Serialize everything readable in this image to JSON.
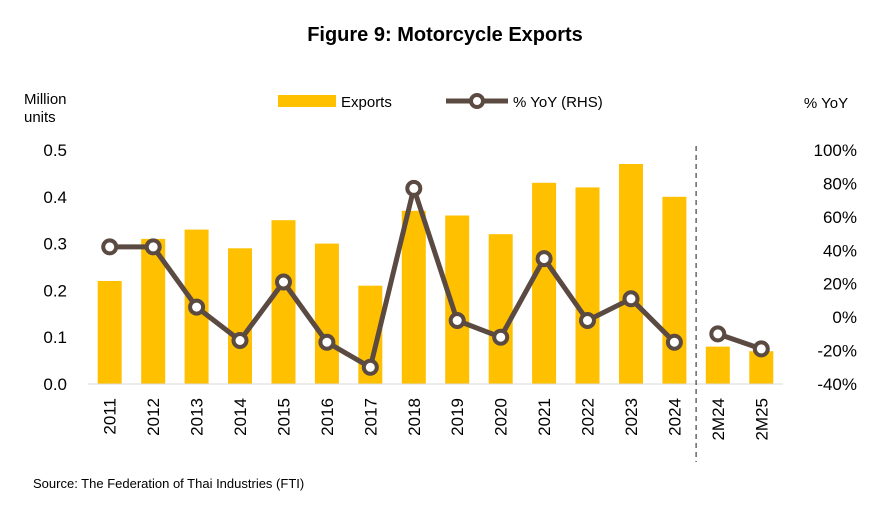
{
  "chart_data": {
    "type": "bar",
    "title": "Figure 9:  Motorcycle Exports",
    "categories": [
      "2011",
      "2012",
      "2013",
      "2014",
      "2015",
      "2016",
      "2017",
      "2018",
      "2019",
      "2020",
      "2021",
      "2022",
      "2023",
      "2024",
      "2M24",
      "2M25"
    ],
    "series": [
      {
        "name": "Exports",
        "type": "bar",
        "axis": "left",
        "color": "#FFC000",
        "values": [
          0.22,
          0.31,
          0.33,
          0.29,
          0.35,
          0.3,
          0.21,
          0.37,
          0.36,
          0.32,
          0.43,
          0.42,
          0.47,
          0.4,
          0.08,
          0.07
        ]
      },
      {
        "name": "% YoY (RHS)",
        "type": "line",
        "axis": "right",
        "color": "#5B4A42",
        "values": [
          42,
          42,
          6,
          -14,
          21,
          -15,
          -30,
          77,
          -2,
          -12,
          35,
          -2,
          11,
          -15,
          -10,
          -19
        ]
      }
    ],
    "y_left": {
      "unit_label": "Million\nunits",
      "min": 0.0,
      "max": 0.5,
      "ticks": [
        "0.0",
        "0.1",
        "0.2",
        "0.3",
        "0.4",
        "0.5"
      ]
    },
    "y_right": {
      "unit_label": "% YoY",
      "min": -40,
      "max": 100,
      "ticks": [
        "-40%",
        "-20%",
        "0%",
        "20%",
        "40%",
        "60%",
        "80%",
        "100%"
      ]
    },
    "divider_after_category": "2024",
    "grid": false,
    "legend_position": "top-center"
  },
  "source": "Source: The Federation of Thai Industries (FTI)"
}
